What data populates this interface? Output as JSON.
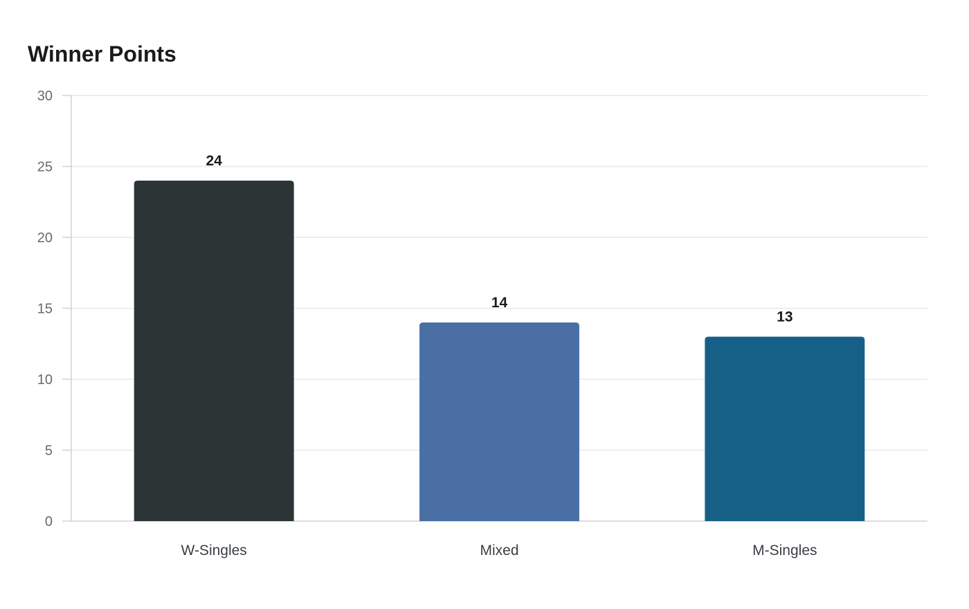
{
  "chart_data": {
    "type": "bar",
    "title": "Winner Points",
    "categories": [
      "W-Singles",
      "Mixed",
      "M-Singles"
    ],
    "values": [
      24,
      14,
      13
    ],
    "colors": [
      "#2d3436",
      "#4a6fa5",
      "#166088"
    ],
    "ylim": [
      0,
      30
    ],
    "yticks": [
      0,
      5,
      10,
      15,
      20,
      25,
      30
    ],
    "grid": true,
    "legend": "none",
    "xlabel": "",
    "ylabel": ""
  }
}
